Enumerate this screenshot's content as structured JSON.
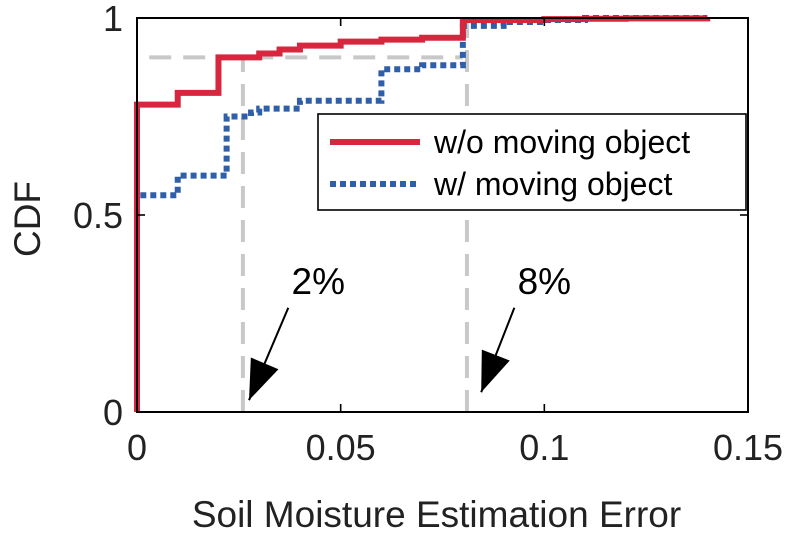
{
  "chart_data": {
    "type": "line",
    "title": "",
    "xlabel": "Soil Moisture Estimation Error",
    "ylabel": "CDF",
    "xlim": [
      0,
      0.15
    ],
    "ylim": [
      0,
      1
    ],
    "xticks": [
      0,
      0.05,
      0.1,
      0.15
    ],
    "xtick_labels": [
      "0",
      "0.05",
      "0.1",
      "0.15"
    ],
    "yticks": [
      0,
      0.5,
      1
    ],
    "ytick_labels": [
      "0",
      "0.5",
      "1"
    ],
    "grid": false,
    "legend_position": "top-right",
    "series": [
      {
        "name": "w/o moving object",
        "color": "#d7263d",
        "style": "solid",
        "step_x": [
          0,
          0,
          0.002,
          0.005,
          0.01,
          0.015,
          0.02,
          0.025,
          0.03,
          0.035,
          0.04,
          0.045,
          0.05,
          0.055,
          0.06,
          0.065,
          0.07,
          0.075,
          0.08,
          0.08,
          0.09,
          0.1,
          0.11,
          0.12,
          0.13,
          0.14
        ],
        "step_y": [
          0,
          0.78,
          0.78,
          0.78,
          0.81,
          0.81,
          0.9,
          0.9,
          0.91,
          0.92,
          0.93,
          0.93,
          0.94,
          0.94,
          0.945,
          0.945,
          0.95,
          0.95,
          0.95,
          0.995,
          0.995,
          0.997,
          0.998,
          0.999,
          0.999,
          1.0
        ]
      },
      {
        "name": "w/ moving object",
        "color": "#2e5fa8",
        "style": "dotted",
        "step_x": [
          0,
          0,
          0.01,
          0.015,
          0.02,
          0.022,
          0.028,
          0.03,
          0.04,
          0.05,
          0.06,
          0.07,
          0.08,
          0.08,
          0.09,
          0.1,
          0.11,
          0.12,
          0.13,
          0.14
        ],
        "step_y": [
          0,
          0.55,
          0.6,
          0.6,
          0.6,
          0.75,
          0.76,
          0.77,
          0.79,
          0.79,
          0.87,
          0.88,
          0.89,
          0.98,
          0.99,
          0.995,
          1.0,
          1.0,
          1.0,
          1.0
        ]
      }
    ],
    "reference_lines": [
      {
        "axis": "y",
        "value": 0.9,
        "x_from": 0.003,
        "x_to": 0.08
      },
      {
        "axis": "x",
        "value": 0.026,
        "y_from": 0,
        "y_to": 0.9
      },
      {
        "axis": "x",
        "value": 0.081,
        "y_from": 0,
        "y_to": 0.99
      }
    ],
    "annotations": [
      {
        "text": "2%",
        "text_x": 0.0445,
        "text_y": 0.3,
        "arrow_to_x": 0.0275,
        "arrow_to_y": 0.03
      },
      {
        "text": "8%",
        "text_x": 0.1,
        "text_y": 0.3,
        "arrow_to_x": 0.0845,
        "arrow_to_y": 0.05
      }
    ]
  }
}
